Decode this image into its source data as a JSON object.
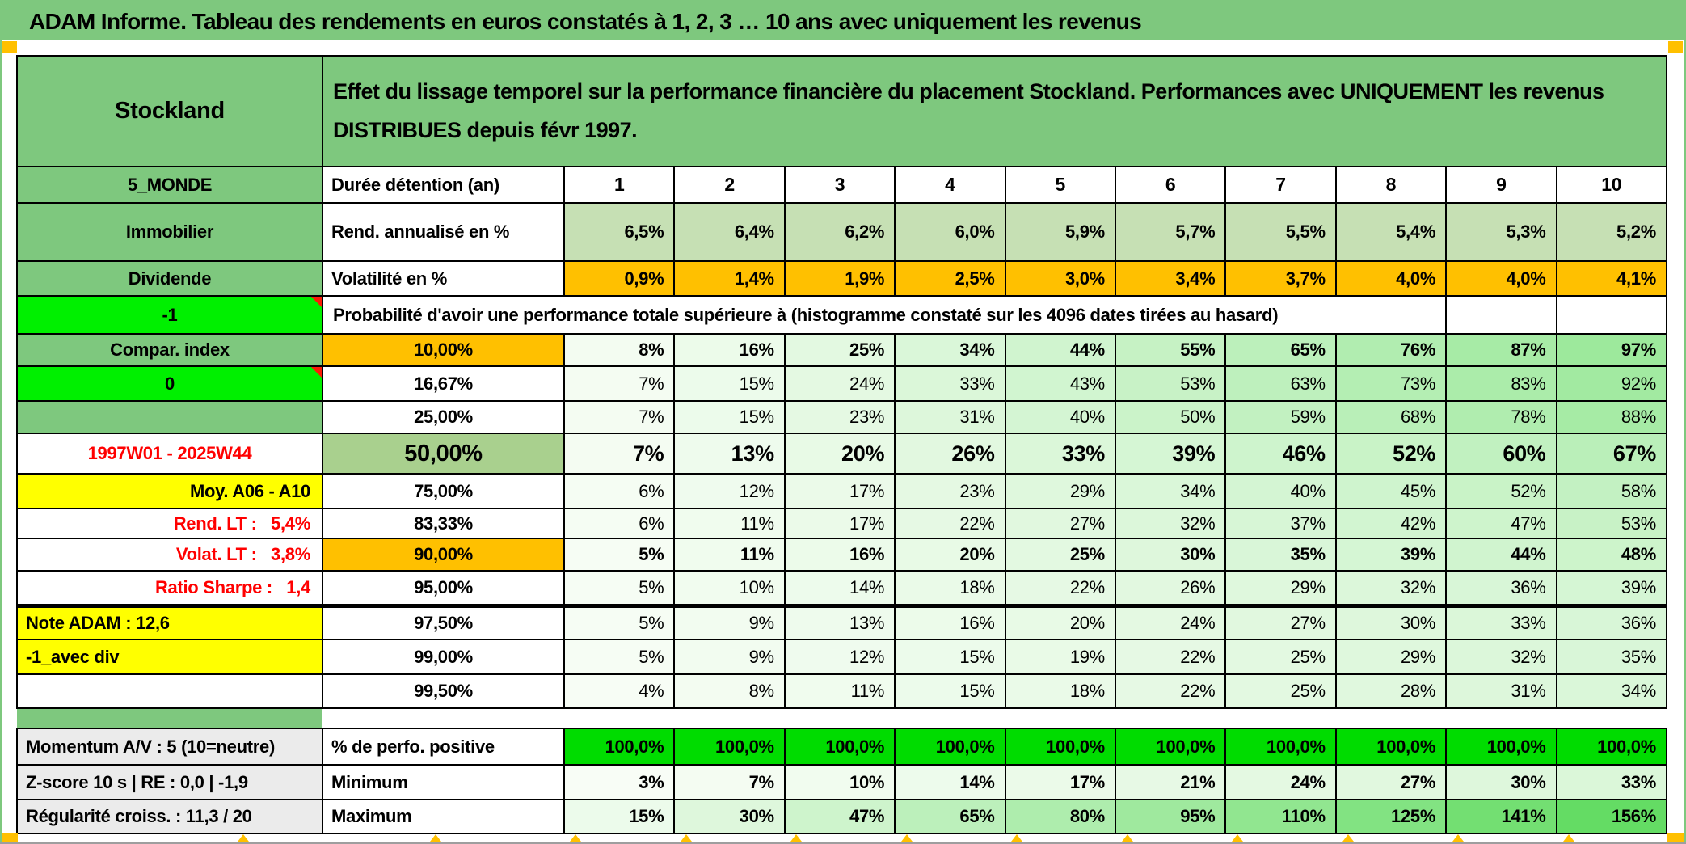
{
  "page": {
    "title": "ADAM Informe. Tableau des rendements en euros constatés à 1, 2, 3 … 10 ans avec uniquement les revenus"
  },
  "palette": {
    "header_green": "#7ec87e",
    "sage_green": "#a9d08e",
    "light_green": "#c6e0b4",
    "orange": "#ffc000",
    "lime_green": "#00f000",
    "flag_green": "#00dc00",
    "yellow": "#ffff00",
    "light_gray": "#ebebeb",
    "red_text": "#ff0000",
    "scale_low": "#fbfef9",
    "scale_high": "#64dc64"
  },
  "table": {
    "rows": [
      {
        "kind": "title",
        "left": "Stockland",
        "text": "Effet du lissage temporel sur la performance financière du placement Stockland. Performances avec UNIQUEMENT les revenus DISTRIBUES depuis févr 1997."
      },
      {
        "kind": "header",
        "left": "5_MONDE",
        "label": "Durée détention (an)",
        "values": [
          "1",
          "2",
          "3",
          "4",
          "5",
          "6",
          "7",
          "8",
          "9",
          "10"
        ]
      },
      {
        "kind": "data",
        "left": "Immobilier",
        "left_style": "green",
        "label": "Rend. annualisé en %",
        "label_align": "left",
        "values": [
          "6,5%",
          "6,4%",
          "6,2%",
          "6,0%",
          "5,9%",
          "5,7%",
          "5,5%",
          "5,4%",
          "5,3%",
          "5,2%"
        ],
        "value_bg": "light_green",
        "bold": true
      },
      {
        "kind": "data",
        "left": "Dividende",
        "left_style": "green",
        "label": "Volatilité en %",
        "label_align": "left",
        "values": [
          "0,9%",
          "1,4%",
          "1,9%",
          "2,5%",
          "3,0%",
          "3,4%",
          "3,7%",
          "4,0%",
          "4,0%",
          "4,1%"
        ],
        "value_bg": "orange",
        "bold": true
      },
      {
        "kind": "merged",
        "left": "-1",
        "left_style": "lime",
        "corner": true,
        "text": "Probabilité d'avoir une performance totale supérieure à (histogramme constaté sur les 4096 dates tirées au hasard)"
      },
      {
        "kind": "data",
        "left": "Compar. index",
        "left_style": "green",
        "label": "10,00%",
        "label_bg": "orange",
        "values": [
          "8%",
          "16%",
          "25%",
          "34%",
          "44%",
          "55%",
          "65%",
          "76%",
          "87%",
          "97%"
        ],
        "value_bg": "scale",
        "bold": true
      },
      {
        "kind": "data",
        "left": "0",
        "left_style": "lime",
        "corner": true,
        "label": "16,67%",
        "values": [
          "7%",
          "15%",
          "24%",
          "33%",
          "43%",
          "53%",
          "63%",
          "73%",
          "83%",
          "92%"
        ],
        "value_bg": "scale"
      },
      {
        "kind": "data",
        "left": "",
        "left_style": "green",
        "label": "25,00%",
        "values": [
          "7%",
          "15%",
          "23%",
          "31%",
          "40%",
          "50%",
          "59%",
          "68%",
          "78%",
          "88%"
        ],
        "value_bg": "scale"
      },
      {
        "kind": "data",
        "left": "1997W01 - 2025W44",
        "left_style": "red",
        "label": "50,00%",
        "label_bg": "sage_green",
        "big": true,
        "values": [
          "7%",
          "13%",
          "20%",
          "26%",
          "33%",
          "39%",
          "46%",
          "52%",
          "60%",
          "67%"
        ],
        "value_bg": "scale",
        "bold": true
      },
      {
        "kind": "data",
        "left": "Moy. A06 - A10",
        "left_style": "yellow-right",
        "label": "75,00%",
        "values": [
          "6%",
          "12%",
          "17%",
          "23%",
          "29%",
          "34%",
          "40%",
          "45%",
          "52%",
          "58%"
        ],
        "value_bg": "scale"
      },
      {
        "kind": "data",
        "left": "Rend. LT :   5,4%",
        "left_style": "red-right",
        "label": "83,33%",
        "values": [
          "6%",
          "11%",
          "17%",
          "22%",
          "27%",
          "32%",
          "37%",
          "42%",
          "47%",
          "53%"
        ],
        "value_bg": "scale"
      },
      {
        "kind": "data",
        "left": "Volat. LT :   3,8%",
        "left_style": "red-right",
        "label": "90,00%",
        "label_bg": "orange",
        "values": [
          "5%",
          "11%",
          "16%",
          "20%",
          "25%",
          "30%",
          "35%",
          "39%",
          "44%",
          "48%"
        ],
        "value_bg": "scale",
        "bold": true
      },
      {
        "kind": "data",
        "left": "Ratio Sharpe :   1,4",
        "left_style": "red-right",
        "label": "95,00%",
        "values": [
          "5%",
          "10%",
          "14%",
          "18%",
          "22%",
          "26%",
          "29%",
          "32%",
          "36%",
          "39%"
        ],
        "value_bg": "scale"
      },
      {
        "kind": "data",
        "left": "Note ADAM : 12,6",
        "left_style": "yellow-left",
        "label": "97,50%",
        "thick_top": true,
        "values": [
          "5%",
          "9%",
          "13%",
          "16%",
          "20%",
          "24%",
          "27%",
          "30%",
          "33%",
          "36%"
        ],
        "value_bg": "scale"
      },
      {
        "kind": "data",
        "left": "-1_avec div",
        "left_style": "yellow-left",
        "label": "99,00%",
        "values": [
          "5%",
          "9%",
          "12%",
          "15%",
          "19%",
          "22%",
          "25%",
          "29%",
          "32%",
          "35%"
        ],
        "value_bg": "scale"
      },
      {
        "kind": "data",
        "left": "",
        "left_style": "white",
        "label": "99,50%",
        "values": [
          "4%",
          "8%",
          "11%",
          "15%",
          "18%",
          "22%",
          "25%",
          "28%",
          "31%",
          "34%"
        ],
        "value_bg": "scale"
      },
      {
        "kind": "spacer"
      },
      {
        "kind": "data",
        "left": "Momentum A/V : 5 (10=neutre)",
        "left_style": "gray",
        "label": "% de perfo. positive",
        "label_align": "left",
        "values": [
          "100,0%",
          "100,0%",
          "100,0%",
          "100,0%",
          "100,0%",
          "100,0%",
          "100,0%",
          "100,0%",
          "100,0%",
          "100,0%"
        ],
        "value_bg": "flag_green",
        "bold": true
      },
      {
        "kind": "data",
        "left": "Z-score 10 s | RE : 0,0 | -1,9",
        "left_style": "gray",
        "label": "Minimum",
        "label_align": "left",
        "values": [
          "3%",
          "7%",
          "10%",
          "14%",
          "17%",
          "21%",
          "24%",
          "27%",
          "30%",
          "33%"
        ],
        "value_bg": "scale",
        "bold": true
      },
      {
        "kind": "data",
        "left": "Régularité croiss. : 11,3 / 20",
        "left_style": "gray",
        "label": "Maximum",
        "label_align": "left",
        "values": [
          "15%",
          "30%",
          "47%",
          "65%",
          "80%",
          "95%",
          "110%",
          "125%",
          "141%",
          "156%"
        ],
        "value_bg": "scale",
        "bold": true
      }
    ]
  }
}
